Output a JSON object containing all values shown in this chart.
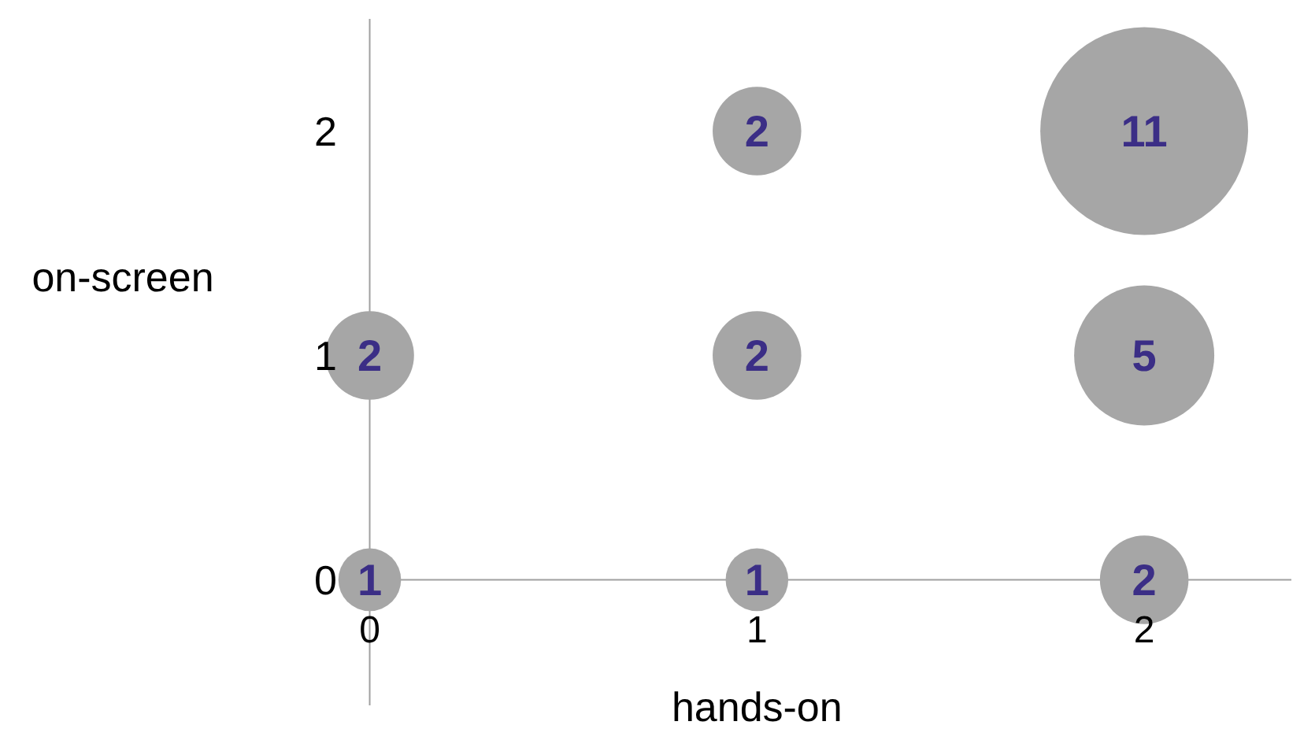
{
  "chart_data": {
    "type": "bubble",
    "xlabel": "hands-on",
    "ylabel": "on-screen",
    "x": [
      0,
      1,
      2,
      0,
      1,
      2,
      1,
      2
    ],
    "values": [
      0,
      0,
      0,
      1,
      1,
      1,
      2,
      2
    ],
    "sizes": [
      1,
      1,
      2,
      2,
      2,
      5,
      2,
      11
    ],
    "value_labels": [
      "1",
      "1",
      "2",
      "2",
      "2",
      "5",
      "2",
      "11"
    ],
    "color": "#a6a6a6",
    "xlim": [
      -0.06,
      2.38
    ],
    "xticks": [
      0,
      1,
      2
    ],
    "ylim": [
      -0.56,
      2.5
    ],
    "yticks": [
      0,
      1,
      2
    ],
    "grid": false
  }
}
